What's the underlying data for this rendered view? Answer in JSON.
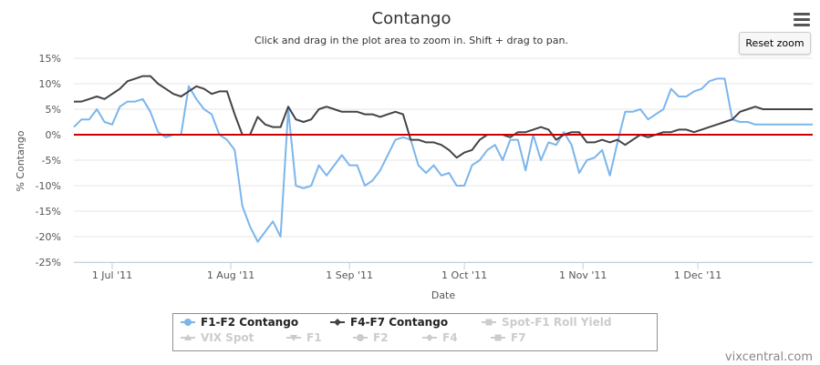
{
  "chart_data": {
    "type": "line",
    "title": "Contango",
    "subtitle": "Click and drag in the plot area to zoom in. Shift + drag to pan.",
    "xlabel": "Date",
    "ylabel": "% Contango",
    "xlim": [
      "2011-06-21",
      "2011-12-31"
    ],
    "ylim": [
      -25,
      15
    ],
    "yticks": [
      15,
      10,
      5,
      0,
      -5,
      -10,
      -15,
      -20,
      -25
    ],
    "ytick_labels": [
      "15%",
      "10%",
      "5%",
      "0%",
      "-5%",
      "-10%",
      "-15%",
      "-20%",
      "-25%"
    ],
    "xticks": [
      "2011-07-01",
      "2011-08-01",
      "2011-09-01",
      "2011-10-01",
      "2011-11-01",
      "2011-12-01"
    ],
    "xtick_labels": [
      "1 Jul '11",
      "1 Aug '11",
      "1 Sep '11",
      "1 Oct '11",
      "1 Nov '11",
      "1 Dec '11"
    ],
    "grid": true,
    "reference_line": {
      "y": 0,
      "color": "#cc0000"
    },
    "series": [
      {
        "name": "F1-F2 Contango",
        "color": "#7cb5ec",
        "visible": true,
        "marker": "circle",
        "x": [
          "2011-06-21",
          "2011-06-23",
          "2011-06-25",
          "2011-06-27",
          "2011-06-29",
          "2011-07-01",
          "2011-07-03",
          "2011-07-05",
          "2011-07-07",
          "2011-07-09",
          "2011-07-11",
          "2011-07-13",
          "2011-07-15",
          "2011-07-17",
          "2011-07-19",
          "2011-07-21",
          "2011-07-23",
          "2011-07-25",
          "2011-07-27",
          "2011-07-29",
          "2011-07-31",
          "2011-08-02",
          "2011-08-04",
          "2011-08-06",
          "2011-08-08",
          "2011-08-10",
          "2011-08-12",
          "2011-08-14",
          "2011-08-16",
          "2011-08-18",
          "2011-08-20",
          "2011-08-22",
          "2011-08-24",
          "2011-08-26",
          "2011-08-28",
          "2011-08-30",
          "2011-09-01",
          "2011-09-03",
          "2011-09-05",
          "2011-09-07",
          "2011-09-09",
          "2011-09-11",
          "2011-09-13",
          "2011-09-15",
          "2011-09-17",
          "2011-09-19",
          "2011-09-21",
          "2011-09-23",
          "2011-09-25",
          "2011-09-27",
          "2011-09-29",
          "2011-10-01",
          "2011-10-03",
          "2011-10-05",
          "2011-10-07",
          "2011-10-09",
          "2011-10-11",
          "2011-10-13",
          "2011-10-15",
          "2011-10-17",
          "2011-10-19",
          "2011-10-21",
          "2011-10-23",
          "2011-10-25",
          "2011-10-27",
          "2011-10-29",
          "2011-10-31",
          "2011-11-02",
          "2011-11-04",
          "2011-11-06",
          "2011-11-08",
          "2011-11-10",
          "2011-11-12",
          "2011-11-14",
          "2011-11-16",
          "2011-11-18",
          "2011-11-20",
          "2011-11-22",
          "2011-11-24",
          "2011-11-26",
          "2011-11-28",
          "2011-11-30",
          "2011-12-02",
          "2011-12-04",
          "2011-12-06",
          "2011-12-08",
          "2011-12-10",
          "2011-12-12",
          "2011-12-14",
          "2011-12-16",
          "2011-12-18",
          "2011-12-20",
          "2011-12-22",
          "2011-12-24",
          "2011-12-26",
          "2011-12-28",
          "2011-12-30",
          "2011-12-31"
        ],
        "y": [
          1.5,
          3,
          3,
          5,
          2.5,
          2,
          5.5,
          6.5,
          6.5,
          7,
          4.5,
          0.5,
          -0.5,
          0,
          0,
          9.5,
          7,
          5,
          4,
          0,
          -1,
          -3,
          -14,
          -18,
          -21,
          -19,
          -17,
          -20,
          5,
          -10,
          -10.5,
          -10,
          -6,
          -8,
          -6,
          -4,
          -6,
          -6,
          -10,
          -9,
          -7,
          -4,
          -1,
          -0.5,
          -1,
          -6,
          -7.5,
          -6,
          -8,
          -7.5,
          -10,
          -10,
          -6,
          -5,
          -3,
          -2,
          -5,
          -1,
          -1,
          -7,
          0,
          -5,
          -1.5,
          -2,
          0.5,
          -2,
          -7.5,
          -5,
          -4.5,
          -3,
          -8,
          -1.5,
          4.5,
          4.5,
          5,
          3,
          4,
          5,
          9,
          7.5,
          7.5,
          8.5,
          9,
          10.5,
          11,
          11,
          3,
          2.5,
          2.5,
          2,
          2,
          2,
          2,
          2,
          2,
          2,
          2,
          2
        ]
      },
      {
        "name": "F4-F7 Contango",
        "color": "#434348",
        "visible": true,
        "marker": "diamond",
        "x": [
          "2011-06-21",
          "2011-06-23",
          "2011-06-25",
          "2011-06-27",
          "2011-06-29",
          "2011-07-01",
          "2011-07-03",
          "2011-07-05",
          "2011-07-07",
          "2011-07-09",
          "2011-07-11",
          "2011-07-13",
          "2011-07-15",
          "2011-07-17",
          "2011-07-19",
          "2011-07-21",
          "2011-07-23",
          "2011-07-25",
          "2011-07-27",
          "2011-07-29",
          "2011-07-31",
          "2011-08-02",
          "2011-08-04",
          "2011-08-06",
          "2011-08-08",
          "2011-08-10",
          "2011-08-12",
          "2011-08-14",
          "2011-08-16",
          "2011-08-18",
          "2011-08-20",
          "2011-08-22",
          "2011-08-24",
          "2011-08-26",
          "2011-08-28",
          "2011-08-30",
          "2011-09-01",
          "2011-09-03",
          "2011-09-05",
          "2011-09-07",
          "2011-09-09",
          "2011-09-11",
          "2011-09-13",
          "2011-09-15",
          "2011-09-17",
          "2011-09-19",
          "2011-09-21",
          "2011-09-23",
          "2011-09-25",
          "2011-09-27",
          "2011-09-29",
          "2011-10-01",
          "2011-10-03",
          "2011-10-05",
          "2011-10-07",
          "2011-10-09",
          "2011-10-11",
          "2011-10-13",
          "2011-10-15",
          "2011-10-17",
          "2011-10-19",
          "2011-10-21",
          "2011-10-23",
          "2011-10-25",
          "2011-10-27",
          "2011-10-29",
          "2011-10-31",
          "2011-11-02",
          "2011-11-04",
          "2011-11-06",
          "2011-11-08",
          "2011-11-10",
          "2011-11-12",
          "2011-11-14",
          "2011-11-16",
          "2011-11-18",
          "2011-11-20",
          "2011-11-22",
          "2011-11-24",
          "2011-11-26",
          "2011-11-28",
          "2011-11-30",
          "2011-12-02",
          "2011-12-04",
          "2011-12-06",
          "2011-12-08",
          "2011-12-10",
          "2011-12-12",
          "2011-12-14",
          "2011-12-16",
          "2011-12-18",
          "2011-12-20",
          "2011-12-22",
          "2011-12-24",
          "2011-12-26",
          "2011-12-28",
          "2011-12-30",
          "2011-12-31"
        ],
        "y": [
          6.5,
          6.5,
          7,
          7.5,
          7,
          8,
          9,
          10.5,
          11,
          11.5,
          11.5,
          10,
          9,
          8,
          7.5,
          8.5,
          9.5,
          9,
          8,
          8.5,
          8.5,
          4,
          0,
          0,
          3.5,
          2,
          1.5,
          1.5,
          5.5,
          3,
          2.5,
          3,
          5,
          5.5,
          5,
          4.5,
          4.5,
          4.5,
          4,
          4,
          3.5,
          4,
          4.5,
          4,
          -1,
          -1,
          -1.5,
          -1.5,
          -2,
          -3,
          -4.5,
          -3.5,
          -3,
          -1,
          0,
          0,
          0,
          -0.5,
          0.5,
          0.5,
          1,
          1.5,
          1,
          -1,
          0,
          0.5,
          0.5,
          -1.5,
          -1.5,
          -1,
          -1.5,
          -1,
          -2,
          -1,
          0,
          -0.5,
          0,
          0.5,
          0.5,
          1,
          1,
          0.5,
          1,
          1.5,
          2,
          2.5,
          3,
          4.5,
          5,
          5.5,
          5,
          5,
          5,
          5,
          5,
          5,
          5,
          5
        ]
      },
      {
        "name": "Spot-F1 Roll Yield",
        "visible": false,
        "marker": "square"
      },
      {
        "name": "VIX Spot",
        "visible": false,
        "marker": "triangle"
      },
      {
        "name": "F1",
        "visible": false,
        "marker": "triangle-down"
      },
      {
        "name": "F2",
        "visible": false,
        "marker": "circle"
      },
      {
        "name": "F4",
        "visible": false,
        "marker": "diamond"
      },
      {
        "name": "F7",
        "visible": false,
        "marker": "square"
      }
    ]
  },
  "controls": {
    "reset_zoom_label": "Reset zoom",
    "menu_icon": "hamburger-menu-icon"
  },
  "credit": "vixcentral.com"
}
